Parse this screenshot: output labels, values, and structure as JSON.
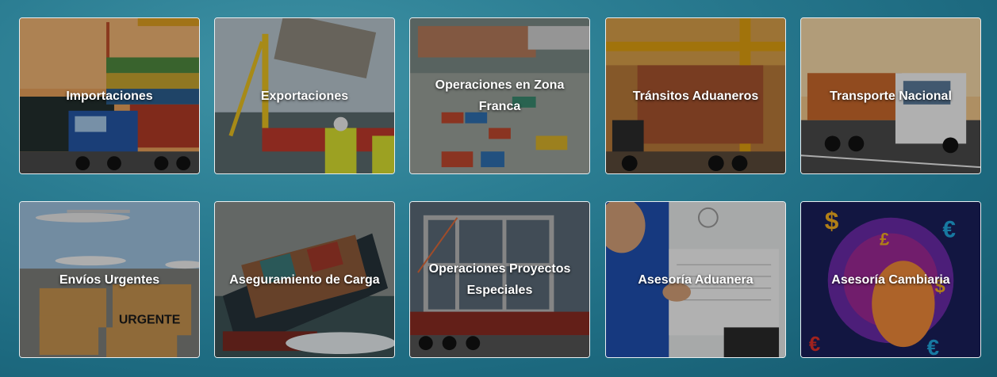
{
  "services": [
    {
      "label": "Importaciones"
    },
    {
      "label": "Exportaciones"
    },
    {
      "label": "Operaciones en Zona Franca"
    },
    {
      "label": "Tránsitos Aduaneros"
    },
    {
      "label": "Transporte Nacional"
    },
    {
      "label": "Envíos Urgentes"
    },
    {
      "label": "Aseguramiento de Carga"
    },
    {
      "label": "Operaciones Proyectos Especiales"
    },
    {
      "label": "Asesoría Aduanera"
    },
    {
      "label": "Asesoría Cambiaria"
    }
  ],
  "urgent_box_text": "URGENTE",
  "currency_symbols": [
    "$",
    "£",
    "€",
    "€",
    "$",
    "€"
  ]
}
